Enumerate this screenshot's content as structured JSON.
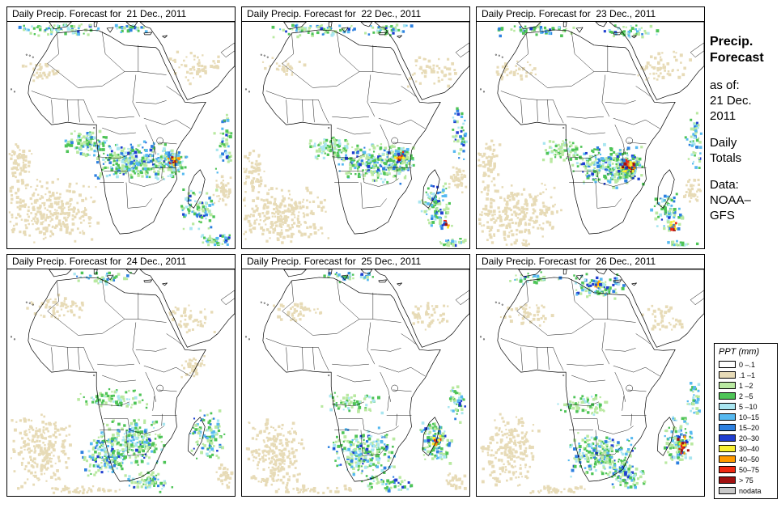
{
  "panels": [
    {
      "title": "Daily Precip. Forecast for  21 Dec., 2011"
    },
    {
      "title": "Daily Precip. Forecast for  22 Dec., 2011"
    },
    {
      "title": "Daily Precip. Forecast for  23 Dec., 2011"
    },
    {
      "title": "Daily Precip. Forecast for  24 Dec., 2011"
    },
    {
      "title": "Daily Precip. Forecast for  25 Dec., 2011"
    },
    {
      "title": "Daily Precip. Forecast for  26 Dec., 2011"
    }
  ],
  "sidebar": {
    "title1": "Precip.",
    "title2": "Forecast",
    "as_of_label": "as of:",
    "date1": "21 Dec.",
    "date2": "2011",
    "freq1": "Daily",
    "freq2": "Totals",
    "src_label": "Data:",
    "src1": "NOAA–",
    "src2": "GFS"
  },
  "legend": {
    "title": "PPT (mm)",
    "entries": [
      {
        "label": "0 –.1",
        "color": "#ffffff"
      },
      {
        "label": ".1 –1",
        "color": "#e7dbb7"
      },
      {
        "label": "1 –2",
        "color": "#b9e9a1"
      },
      {
        "label": "2 –5",
        "color": "#4ec457"
      },
      {
        "label": "5 –10",
        "color": "#a9e6f0"
      },
      {
        "label": "10–15",
        "color": "#56b9f0"
      },
      {
        "label": "15–20",
        "color": "#2d80e0"
      },
      {
        "label": "20–30",
        "color": "#1f3ed0"
      },
      {
        "label": "30–40",
        "color": "#f8f032"
      },
      {
        "label": "40–50",
        "color": "#ff9a00"
      },
      {
        "label": "50–75",
        "color": "#ee2812"
      },
      {
        "label": "> 75",
        "color": "#a01010"
      },
      {
        "label": "nodata",
        "color": "#c9c9c9"
      }
    ]
  }
}
